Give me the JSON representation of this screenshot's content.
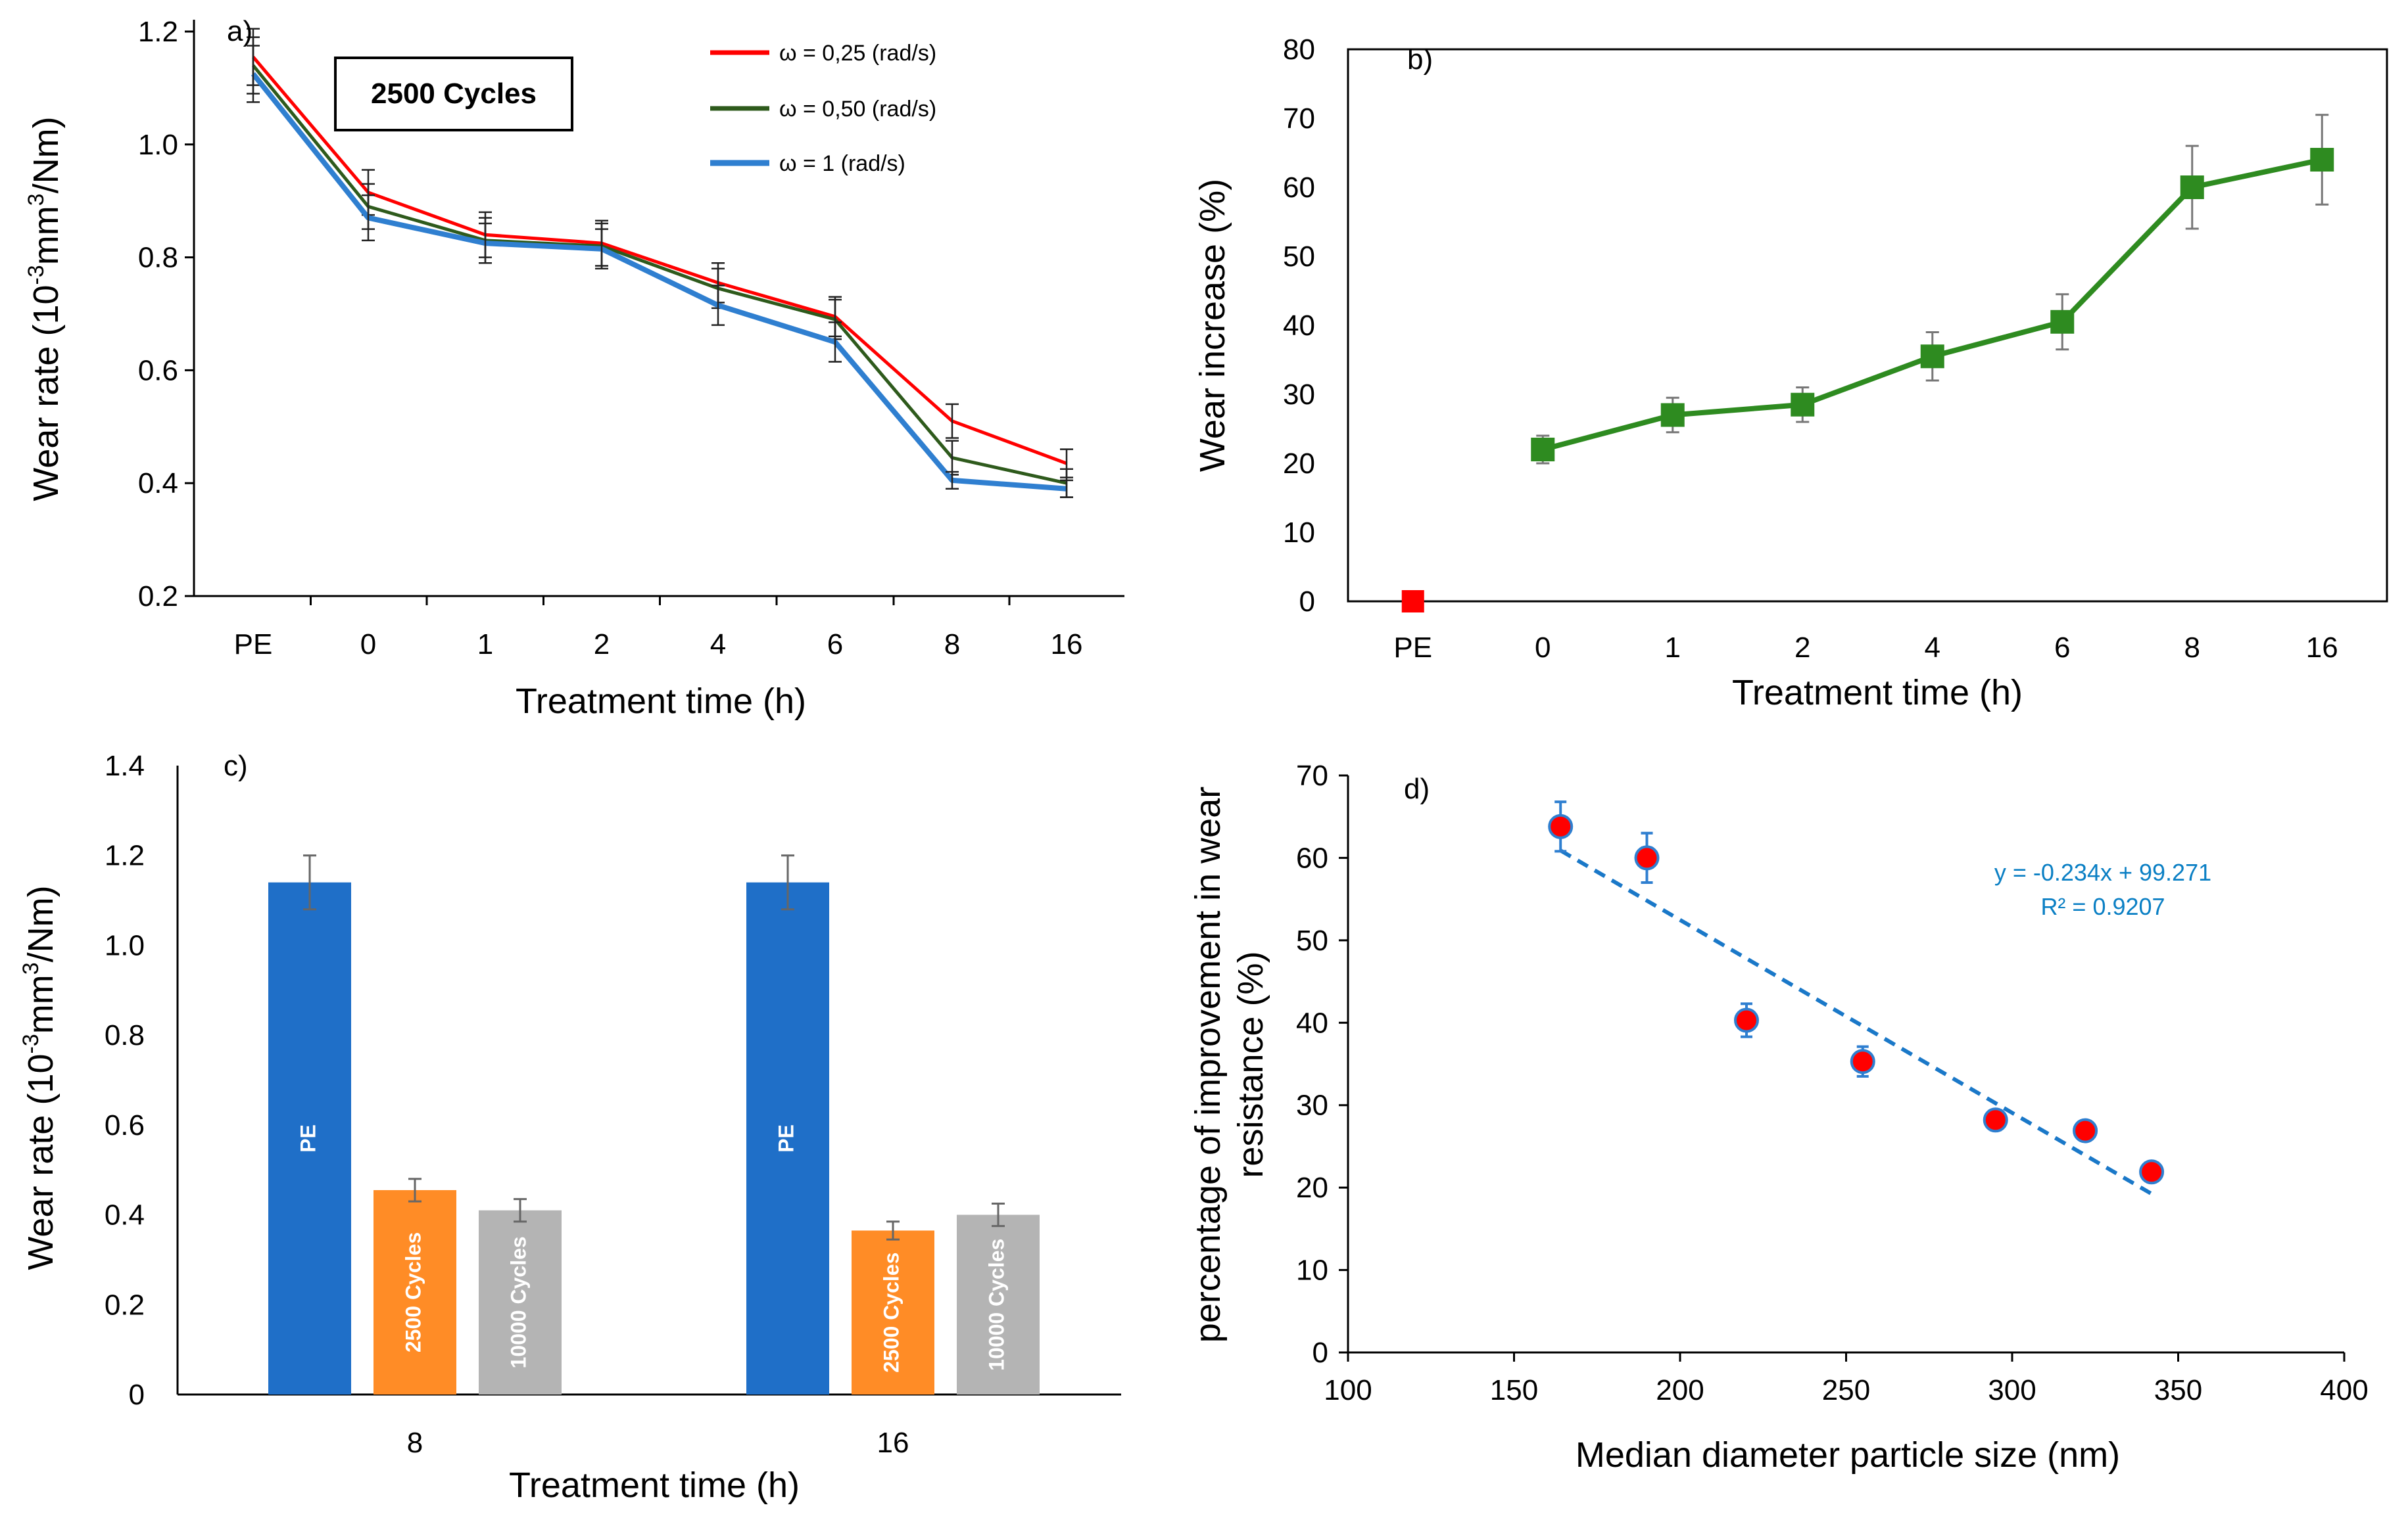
{
  "chart_data": [
    {
      "panel": "a)",
      "type": "line",
      "categories": [
        "PE",
        "0",
        "1",
        "2",
        "4",
        "6",
        "8",
        "16"
      ],
      "ylabel_pre": "Wear rate (10",
      "ylabel_sup": "-3",
      "ylabel_mid": "mm",
      "ylabel_sup2": "3",
      "ylabel_post": "/Nm)",
      "xlabel": "Treatment time (h)",
      "ylim": [
        0.2,
        1.2
      ],
      "yticks": [
        "0.2",
        "0.4",
        "0.6",
        "0.8",
        "1.0",
        "1.2"
      ],
      "box_label": "2500 Cycles",
      "series": [
        {
          "name": "ω = 0,25 (rad/s)",
          "color": "#ff0000",
          "values": [
            1.155,
            0.915,
            0.84,
            0.825,
            0.755,
            0.695,
            0.51,
            0.435
          ],
          "errors": [
            0.05,
            0.04,
            0.04,
            0.04,
            0.035,
            0.035,
            0.03,
            0.025
          ]
        },
        {
          "name": "ω = 0,50 (rad/s)",
          "color": "#2e5a1c",
          "values": [
            1.14,
            0.89,
            0.83,
            0.82,
            0.745,
            0.69,
            0.445,
            0.4
          ],
          "errors": [
            0.05,
            0.04,
            0.04,
            0.04,
            0.035,
            0.035,
            0.03,
            0.025
          ]
        },
        {
          "name": "ω = 1 (rad/s)",
          "color": "#2f7fd0",
          "values": [
            1.125,
            0.87,
            0.825,
            0.815,
            0.715,
            0.65,
            0.405,
            0.39
          ],
          "errors": [
            0.05,
            0.04,
            0.035,
            0.035,
            0.035,
            0.035,
            0.015,
            0.015
          ]
        }
      ]
    },
    {
      "panel": "b)",
      "type": "line",
      "categories": [
        "PE",
        "0",
        "1",
        "2",
        "4",
        "6",
        "8",
        "16"
      ],
      "ylabel": "Wear increase (%)",
      "xlabel": "Treatment time (h)",
      "ylim": [
        0,
        80
      ],
      "yticks": [
        "0",
        "10",
        "20",
        "30",
        "40",
        "50",
        "60",
        "70",
        "80"
      ],
      "pe_point": {
        "value": 0,
        "color": "#ff0000"
      },
      "series": [
        {
          "name": "Wear increase",
          "color": "#2e8b20",
          "values": [
            null,
            22,
            27,
            28.5,
            35.5,
            40.5,
            60,
            64
          ],
          "errors": [
            null,
            2,
            2.5,
            2.5,
            3.5,
            4,
            6,
            6.5
          ]
        }
      ]
    },
    {
      "panel": "c)",
      "type": "bar",
      "categories": [
        "8",
        "16"
      ],
      "ylabel_pre": "Wear rate (10",
      "ylabel_sup": "-3",
      "ylabel_mid": "mm",
      "ylabel_sup2": "3",
      "ylabel_post": "/Nm)",
      "xlabel": "Treatment time (h)",
      "ylim": [
        0,
        1.4
      ],
      "yticks": [
        "0",
        "0.2",
        "0.4",
        "0.6",
        "0.8",
        "1.0",
        "1.2",
        "1.4"
      ],
      "series": [
        {
          "name": "PE",
          "color": "#1f6fc8",
          "values": [
            1.14,
            1.14
          ],
          "errors": [
            0.06,
            0.06
          ]
        },
        {
          "name": "2500 Cycles",
          "color": "#ff8c26",
          "values": [
            0.455,
            0.365
          ],
          "errors": [
            0.025,
            0.02
          ]
        },
        {
          "name": "10000 Cycles",
          "color": "#b4b4b4",
          "values": [
            0.41,
            0.4
          ],
          "errors": [
            0.025,
            0.025
          ]
        }
      ]
    },
    {
      "panel": "d)",
      "type": "scatter",
      "ylabel_line1": "percentage of improvement in wear",
      "ylabel_line2": "resistance (%)",
      "xlabel": "Median diameter particle size (nm)",
      "xlim": [
        100,
        400
      ],
      "ylim": [
        0,
        70
      ],
      "xticks": [
        "100",
        "150",
        "200",
        "250",
        "300",
        "350",
        "400"
      ],
      "yticks": [
        "0",
        "10",
        "20",
        "30",
        "40",
        "50",
        "60",
        "70"
      ],
      "points": [
        {
          "x": 164,
          "y": 63.8,
          "err": 3
        },
        {
          "x": 190,
          "y": 60,
          "err": 3
        },
        {
          "x": 220,
          "y": 40.3,
          "err": 2
        },
        {
          "x": 255,
          "y": 35.3,
          "err": 1.8
        },
        {
          "x": 295,
          "y": 28.2,
          "err": 1.2
        },
        {
          "x": 322,
          "y": 26.9,
          "err": 1.1
        },
        {
          "x": 342,
          "y": 21.9,
          "err": 1
        }
      ],
      "trend": {
        "slope": -0.234,
        "intercept": 99.271,
        "x_range": [
          164,
          342
        ],
        "color": "#1a78c8"
      },
      "equation": "y = -0.234x + 99.271",
      "r2_label": "R² = 0.9207",
      "marker_color": "#ff0000",
      "marker_edge": "#2f7fd0"
    }
  ]
}
